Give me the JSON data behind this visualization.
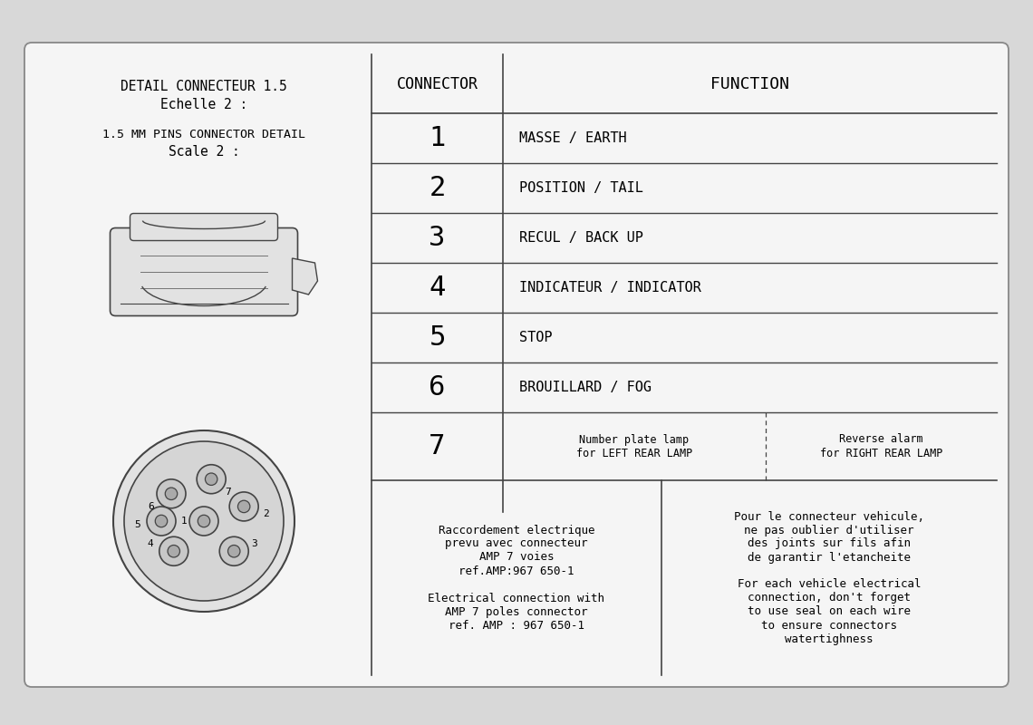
{
  "bg_color": "#d8d8d8",
  "card_color": "#f5f5f5",
  "line_color": "#444444",
  "title_left_line1": "DETAIL CONNECTEUR 1.5",
  "title_left_line2": "Echelle 2 :",
  "title_left_line3": "1.5 MM PINS CONNECTOR DETAIL",
  "title_left_line4": "Scale 2 :",
  "header_connector": "CONNECTOR",
  "header_function": "FUNCTION",
  "rows": [
    {
      "num": "1",
      "func": "MASSE / EARTH"
    },
    {
      "num": "2",
      "func": "POSITION / TAIL"
    },
    {
      "num": "3",
      "func": "RECUL / BACK UP"
    },
    {
      "num": "4",
      "func": "INDICATEUR / INDICATOR"
    },
    {
      "num": "5",
      "func": "STOP"
    },
    {
      "num": "6",
      "func": "BROUILLARD / FOG"
    }
  ],
  "row7_num": "7",
  "row7_left": "Number plate lamp\nfor LEFT REAR LAMP",
  "row7_right": "Reverse alarm\nfor RIGHT REAR LAMP",
  "bottom_left_text": "Raccordement electrique\nprevu avec connecteur\nAMP 7 voies\nref.AMP:967 650-1\n\nElectrical connection with\nAMP 7 poles connector\nref. AMP : 967 650-1",
  "bottom_right_text": "Pour le connecteur vehicule,\nne pas oublier d'utiliser\ndes joints sur fils afin\nde garantir l'etancheite\n\nFor each vehicle electrical\nconnection, don't forget\nto use seal on each wire\nto ensure connectors\nwatertighness"
}
